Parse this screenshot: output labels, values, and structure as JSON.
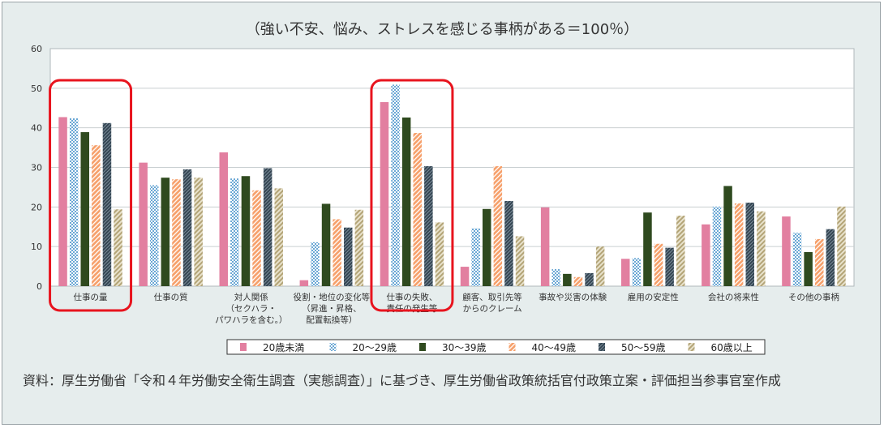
{
  "chart_data": {
    "type": "bar",
    "title": "（強い不安、悩み、ストレスを感じる事柄がある＝100％）",
    "ylim": [
      0,
      60
    ],
    "yticks": [
      0,
      10,
      20,
      30,
      40,
      50,
      60
    ],
    "grid": true,
    "legend_position": "bottom",
    "categories": [
      [
        "仕事の量"
      ],
      [
        "仕事の質"
      ],
      [
        "対人関係",
        "（セクハラ・",
        "パワハラを含む。）"
      ],
      [
        "役割・地位の変化等",
        "（昇進・昇格、",
        "配置転換等）"
      ],
      [
        "仕事の失敗、",
        "責任の発生等"
      ],
      [
        "顧客、取引先等",
        "からのクレーム"
      ],
      [
        "事故や災害の体験"
      ],
      [
        "雇用の安定性"
      ],
      [
        "会社の将来性"
      ],
      [
        "その他の事柄"
      ]
    ],
    "series": [
      {
        "name": "20歳未満",
        "color": "#e27fa0",
        "pattern": "solid",
        "values": [
          42.7,
          31.2,
          33.8,
          1.5,
          46.5,
          4.9,
          19.9,
          6.9,
          15.6,
          17.6
        ]
      },
      {
        "name": "20～29歳",
        "color": "#7fb3d8",
        "pattern": "dots",
        "values": [
          42.4,
          25.5,
          27.2,
          11.1,
          50.9,
          14.6,
          4.3,
          7.1,
          20.1,
          13.5
        ]
      },
      {
        "name": "30～39歳",
        "color": "#2f4a1f",
        "pattern": "solid",
        "values": [
          38.9,
          27.4,
          27.8,
          20.8,
          42.6,
          19.5,
          3.1,
          18.6,
          25.3,
          8.6
        ]
      },
      {
        "name": "40～49歳",
        "color": "#f08a4b",
        "pattern": "hatch",
        "values": [
          35.6,
          27.0,
          24.2,
          16.9,
          38.7,
          30.3,
          2.3,
          10.7,
          20.9,
          11.9
        ]
      },
      {
        "name": "50～59歳",
        "color": "#3a4a57",
        "pattern": "hatch-fine",
        "values": [
          41.2,
          29.5,
          29.8,
          14.8,
          30.3,
          21.5,
          3.3,
          9.7,
          21.1,
          14.4
        ]
      },
      {
        "name": "60歳以上",
        "color": "#c2b48d",
        "pattern": "hatch",
        "values": [
          19.4,
          27.4,
          24.7,
          19.3,
          16.1,
          12.6,
          10.0,
          17.8,
          18.9,
          20.1
        ]
      }
    ],
    "highlighted_categories": [
      0,
      4
    ],
    "highlight_color": "#e8141e"
  },
  "source": {
    "label": "資料：",
    "text": "厚生労働省「令和４年労働安全衛生調査（実態調査）」に基づき、厚生労働省政策統括官付政策立案・評価担当参事官室作成"
  }
}
